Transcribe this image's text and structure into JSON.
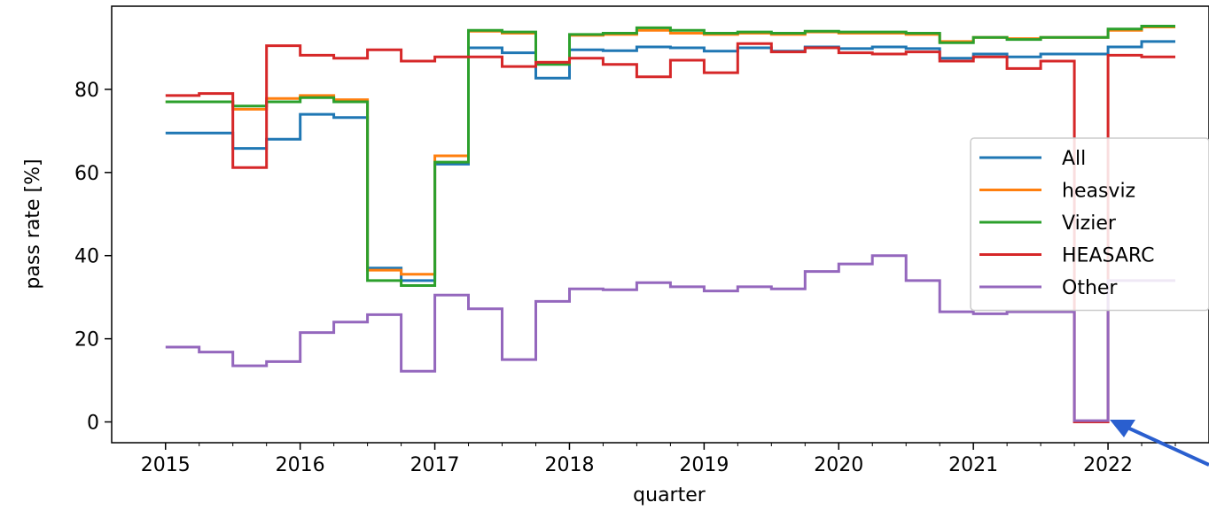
{
  "chart_data": {
    "type": "line",
    "step": "post",
    "xlabel": "quarter",
    "ylabel": "pass rate [%]",
    "xlim": [
      2014.6,
      2022.75
    ],
    "ylim": [
      -5,
      100
    ],
    "xticks": [
      2015,
      2016,
      2017,
      2018,
      2019,
      2020,
      2021,
      2022
    ],
    "xtick_labels": [
      "2015",
      "2016",
      "2017",
      "2018",
      "2019",
      "2020",
      "2021",
      "2022"
    ],
    "yticks": [
      0,
      20,
      40,
      60,
      80
    ],
    "ytick_labels": [
      "0",
      "20",
      "40",
      "60",
      "80"
    ],
    "legend_position": "right",
    "x": [
      2015.0,
      2015.25,
      2015.5,
      2015.75,
      2016.0,
      2016.25,
      2016.5,
      2016.75,
      2017.0,
      2017.25,
      2017.5,
      2017.75,
      2018.0,
      2018.25,
      2018.5,
      2018.75,
      2019.0,
      2019.25,
      2019.5,
      2019.75,
      2020.0,
      2020.25,
      2020.5,
      2020.75,
      2021.0,
      2021.25,
      2021.5,
      2021.75,
      2022.0,
      2022.25
    ],
    "x_end": 2022.5,
    "series": [
      {
        "name": "All",
        "color": "#1f77b4",
        "values": [
          69.5,
          69.5,
          65.8,
          68,
          74,
          73.2,
          37,
          34,
          62,
          90,
          88.8,
          82.7,
          89.5,
          89.3,
          90.2,
          90,
          89.2,
          90,
          89.2,
          90.2,
          89.8,
          90.2,
          89.8,
          87.5,
          88.5,
          87.8,
          88.5,
          88.5,
          90.2,
          91.5
        ]
      },
      {
        "name": "heasviz",
        "color": "#ff7f0e",
        "values": [
          77,
          77,
          75.2,
          77.8,
          78.5,
          77.5,
          36.5,
          35.5,
          64,
          94,
          93.5,
          86.5,
          93,
          93.2,
          94.2,
          93.5,
          93.2,
          93.5,
          93.2,
          93.8,
          93.5,
          93.5,
          93.2,
          91.5,
          92.5,
          92.2,
          92.5,
          92.5,
          94.2,
          95
        ]
      },
      {
        "name": "Vizier",
        "color": "#2ca02c",
        "values": [
          77,
          77,
          76,
          77,
          78,
          77,
          34,
          32.8,
          62.5,
          94.2,
          93.8,
          86,
          93.2,
          93.5,
          94.8,
          94.2,
          93.5,
          93.8,
          93.5,
          94,
          93.8,
          93.8,
          93.5,
          91.2,
          92.5,
          92,
          92.5,
          92.5,
          94.5,
          95.2
        ]
      },
      {
        "name": "HEASARC",
        "color": "#d62728",
        "values": [
          78.5,
          79,
          61.2,
          90.5,
          88.2,
          87.5,
          89.5,
          86.8,
          87.8,
          87.8,
          85.5,
          86.5,
          87.5,
          86,
          83,
          87,
          84,
          91,
          89,
          90,
          88.8,
          88.5,
          89,
          86.8,
          87.8,
          85,
          86.8,
          0,
          88.2,
          87.8
        ]
      },
      {
        "name": "Other",
        "color": "#9467bd",
        "values": [
          18,
          16.8,
          13.5,
          14.5,
          21.5,
          24,
          25.8,
          12.2,
          30.5,
          27.2,
          15,
          29,
          32,
          31.8,
          33.5,
          32.5,
          31.5,
          32.5,
          32,
          36.2,
          38,
          40,
          34,
          26.5,
          26,
          26.5,
          26.5,
          0.3,
          34,
          34
        ]
      }
    ]
  }
}
